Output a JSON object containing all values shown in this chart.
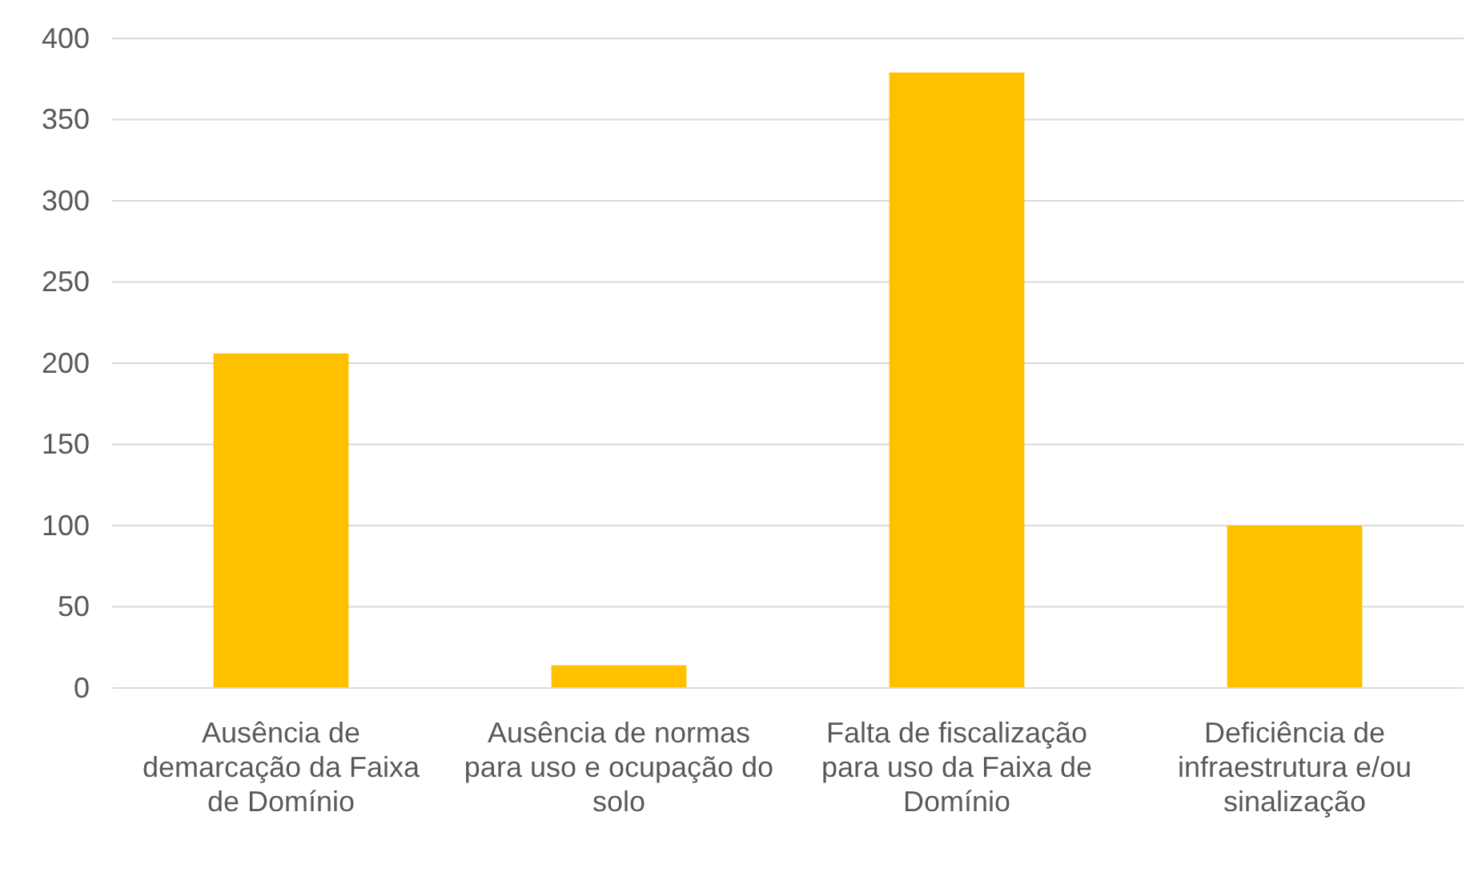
{
  "chart_data": {
    "type": "bar",
    "categories": [
      "Ausência de demarcação da Faixa de Domínio",
      "Ausência de normas para uso e ocupação do solo",
      "Falta de fiscalização para uso da Faixa de Domínio",
      "Deficiência de infraestrutura e/ou sinalização"
    ],
    "values": [
      206,
      14,
      379,
      100
    ],
    "color": "#ffc000",
    "ylim": [
      0,
      400
    ],
    "yticks": [
      0,
      50,
      100,
      150,
      200,
      250,
      300,
      350,
      400
    ],
    "grid": "y"
  }
}
